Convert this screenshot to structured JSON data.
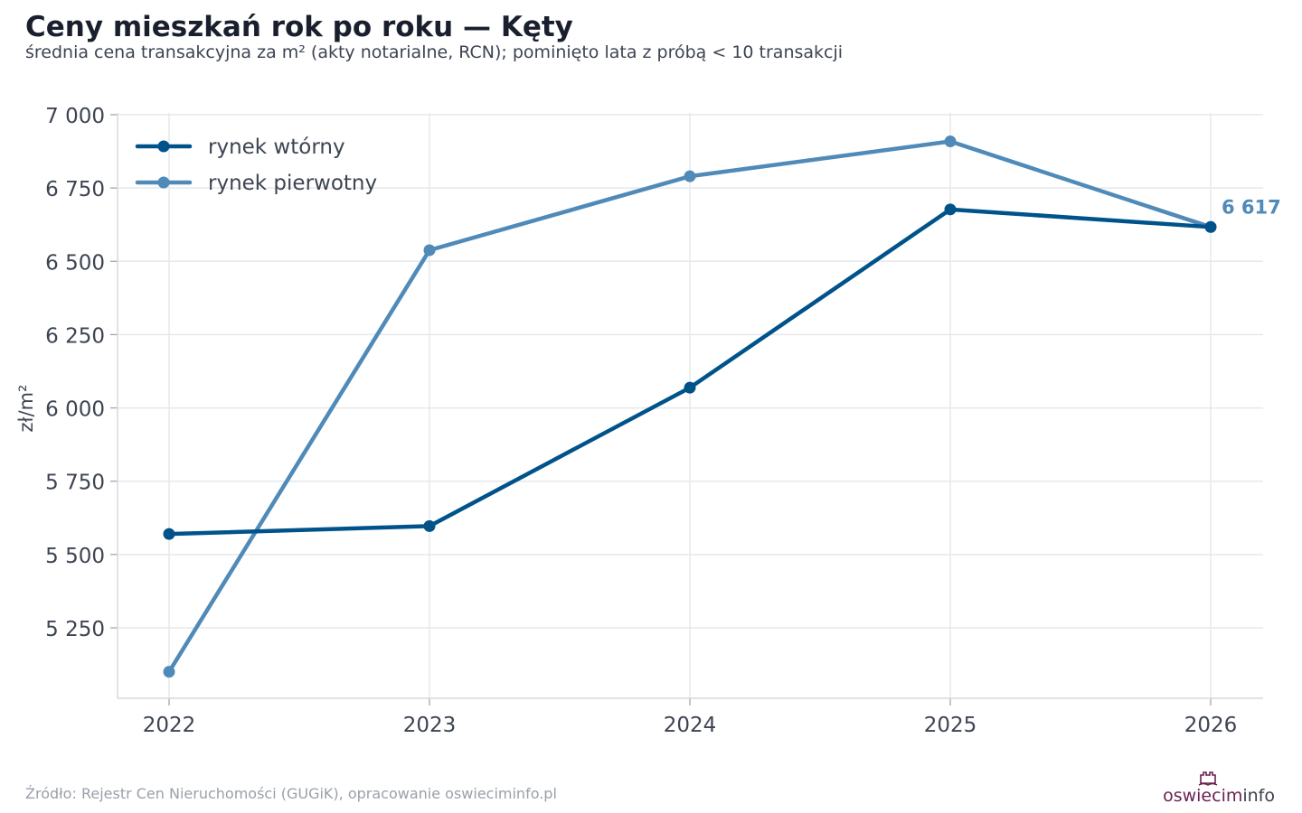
{
  "header": {
    "title": "Ceny mieszkań rok po roku — Kęty",
    "subtitle": "średnia cena transakcyjna za m² (akty notarialne, RCN); pominięto lata z próbą < 10 transakcji"
  },
  "footer": {
    "source": "Źródło: Rejestr Cen Nieruchomości (GUGiK), opracowanie oswieciminfo.pl",
    "logo_part1": "oswiecim",
    "logo_part2": "info"
  },
  "chart_data": {
    "type": "line",
    "x": [
      "2022",
      "2023",
      "2024",
      "2025",
      "2026"
    ],
    "series": [
      {
        "name": "rynek wtórny",
        "color": "#00538a",
        "values": [
          5570,
          5597,
          6069,
          6677,
          6617
        ]
      },
      {
        "name": "rynek pierwotny",
        "color": "#4f8ab8",
        "values": [
          5100,
          6538,
          6790,
          6909,
          6617
        ]
      }
    ],
    "ylabel": "zł/m²",
    "ylim": [
      5100,
      7000
    ],
    "yticks": [
      5250,
      5500,
      5750,
      6000,
      6250,
      6500,
      6750,
      7000
    ],
    "ytick_labels": [
      "5 250",
      "5 500",
      "5 750",
      "6 000",
      "6 250",
      "6 500",
      "6 750",
      "7 000"
    ],
    "grid": true,
    "legend": "top-left",
    "annotation": {
      "text": "6 617",
      "x": "2026",
      "y": 6617,
      "color": "#4f8ab8"
    }
  }
}
